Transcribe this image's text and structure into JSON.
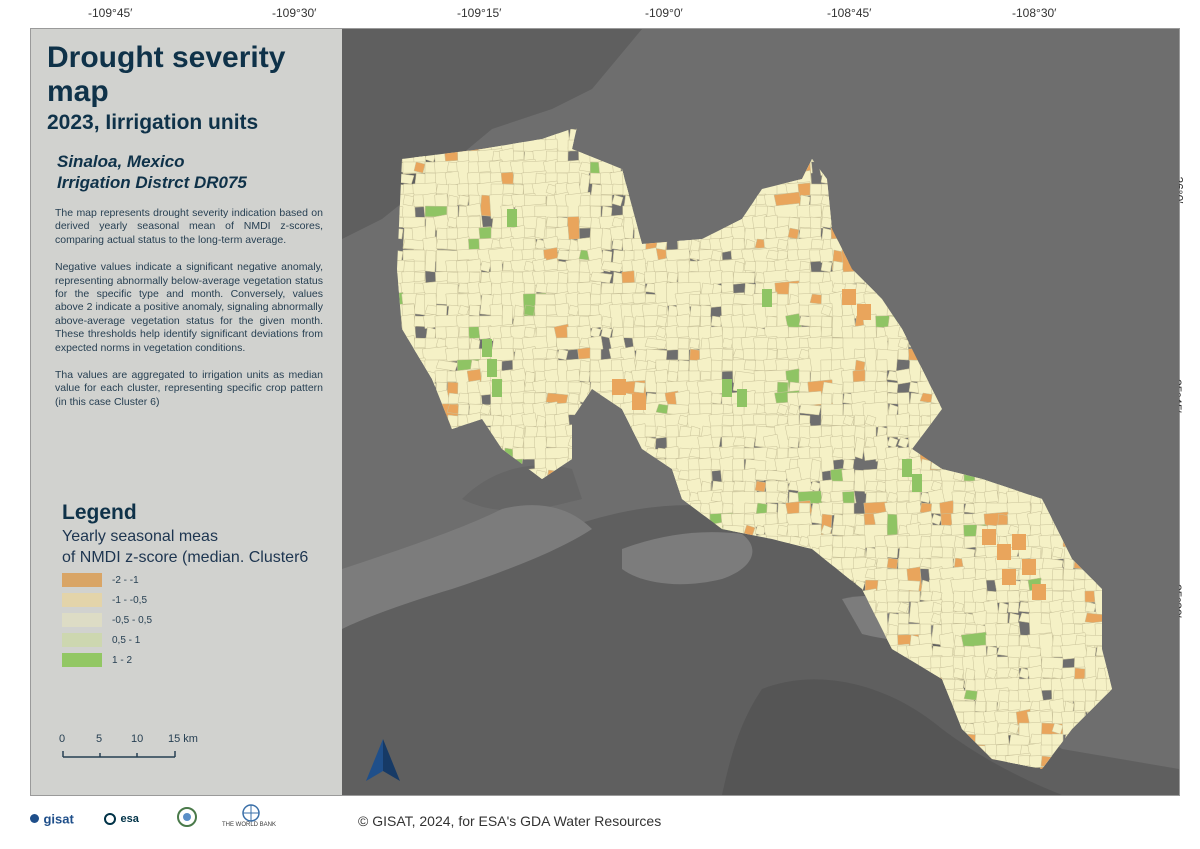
{
  "title": "Drought severity map",
  "subtitle": "2023, Iirrigation units",
  "region_line1": "Sinaloa, Mexico",
  "region_line2": "Irrigation Distrct DR075",
  "description": [
    "The map represents drought severity indication based on derived yearly seasonal mean of NMDI z-scores, comparing actual status to the long-term average.",
    "Negative values indicate a significant negative anomaly, representing abnormally below-average vegetation status for the specific type and month. Conversely, values above 2 indicate a positive anomaly, signaling abnormally above-average vegetation status for the given month. These thresholds help identify significant deviations from expected norms in vegetation conditions.",
    "Tha values are aggregated to irrigation units as median value for each cluster, representing specific crop pattern (in this case Cluster 6)"
  ],
  "legend": {
    "title": "Legend",
    "subtitle_line1": "Yearly seasonal meas",
    "subtitle_line2": "of NMDI z-score (median. Cluster6",
    "items": [
      {
        "label": "-2 - -1",
        "color": "#d9a566"
      },
      {
        "label": "-1 - -0,5",
        "color": "#e3d4aa"
      },
      {
        "label": "-0,5 - 0,5",
        "color": "#dddcc5"
      },
      {
        "label": "0,5 - 1",
        "color": "#cdd7b0"
      },
      {
        "label": "1 - 2",
        "color": "#92c764"
      }
    ]
  },
  "scale_bar": {
    "labels": [
      "0",
      "5",
      "10",
      "15 km"
    ]
  },
  "longitude_ticks": [
    "-109°45′",
    "-109°30′",
    "-109°15′",
    "-109°0′",
    "-108°45′",
    "-108°30′"
  ],
  "latitude_ticks": [
    "26°0′",
    "25°45′",
    "25°30′"
  ],
  "footer": "© GISAT, 2024, for ESA's GDA Water Resources",
  "logos": {
    "gisat": "gisat",
    "esa": "esa",
    "worldbank": "THE WORLD BANK"
  },
  "colors": {
    "panel_bg": "#d1d2cf",
    "map_bg": "#6e6e6e",
    "map_water": "#8a8a8a",
    "map_land": "#5c5c5c",
    "unit_default": "#f5f1c6",
    "unit_orange": "#e9a55c",
    "unit_green": "#8fc464",
    "north_arrow": "#1f4f8a"
  }
}
